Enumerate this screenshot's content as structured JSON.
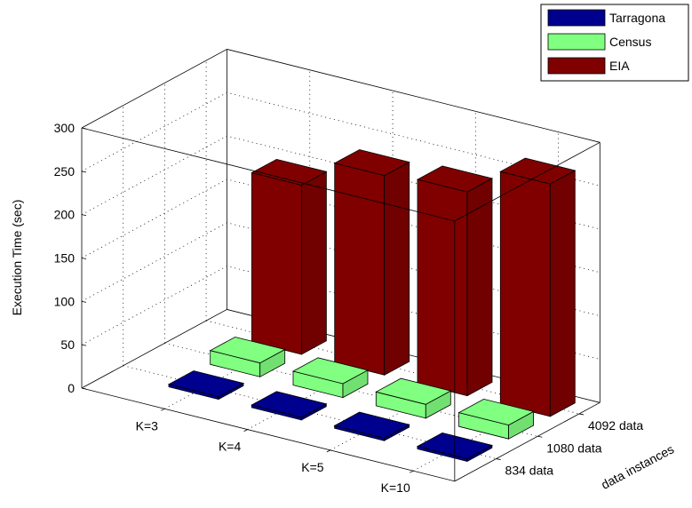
{
  "chart_data": {
    "type": "bar",
    "ylabel": "Execution Time (sec)",
    "zlabel": "data instances",
    "ylim": [
      0,
      300
    ],
    "yticks": [
      0,
      50,
      100,
      150,
      200,
      250,
      300
    ],
    "categories": [
      "K=3",
      "K=4",
      "K=5",
      "K=10"
    ],
    "series": [
      {
        "name": "Tarragona",
        "label": "834 data",
        "values": [
          3,
          3,
          3,
          3
        ],
        "color": "#00008f"
      },
      {
        "name": "Census",
        "label": "1080 data",
        "values": [
          16,
          16,
          16,
          16
        ],
        "color": "#80ff80"
      },
      {
        "name": "EIA",
        "label": "4092 data",
        "values": [
          195,
          230,
          235,
          268
        ],
        "color": "#800000"
      }
    ],
    "legend_position": "top-right",
    "grid": true
  }
}
